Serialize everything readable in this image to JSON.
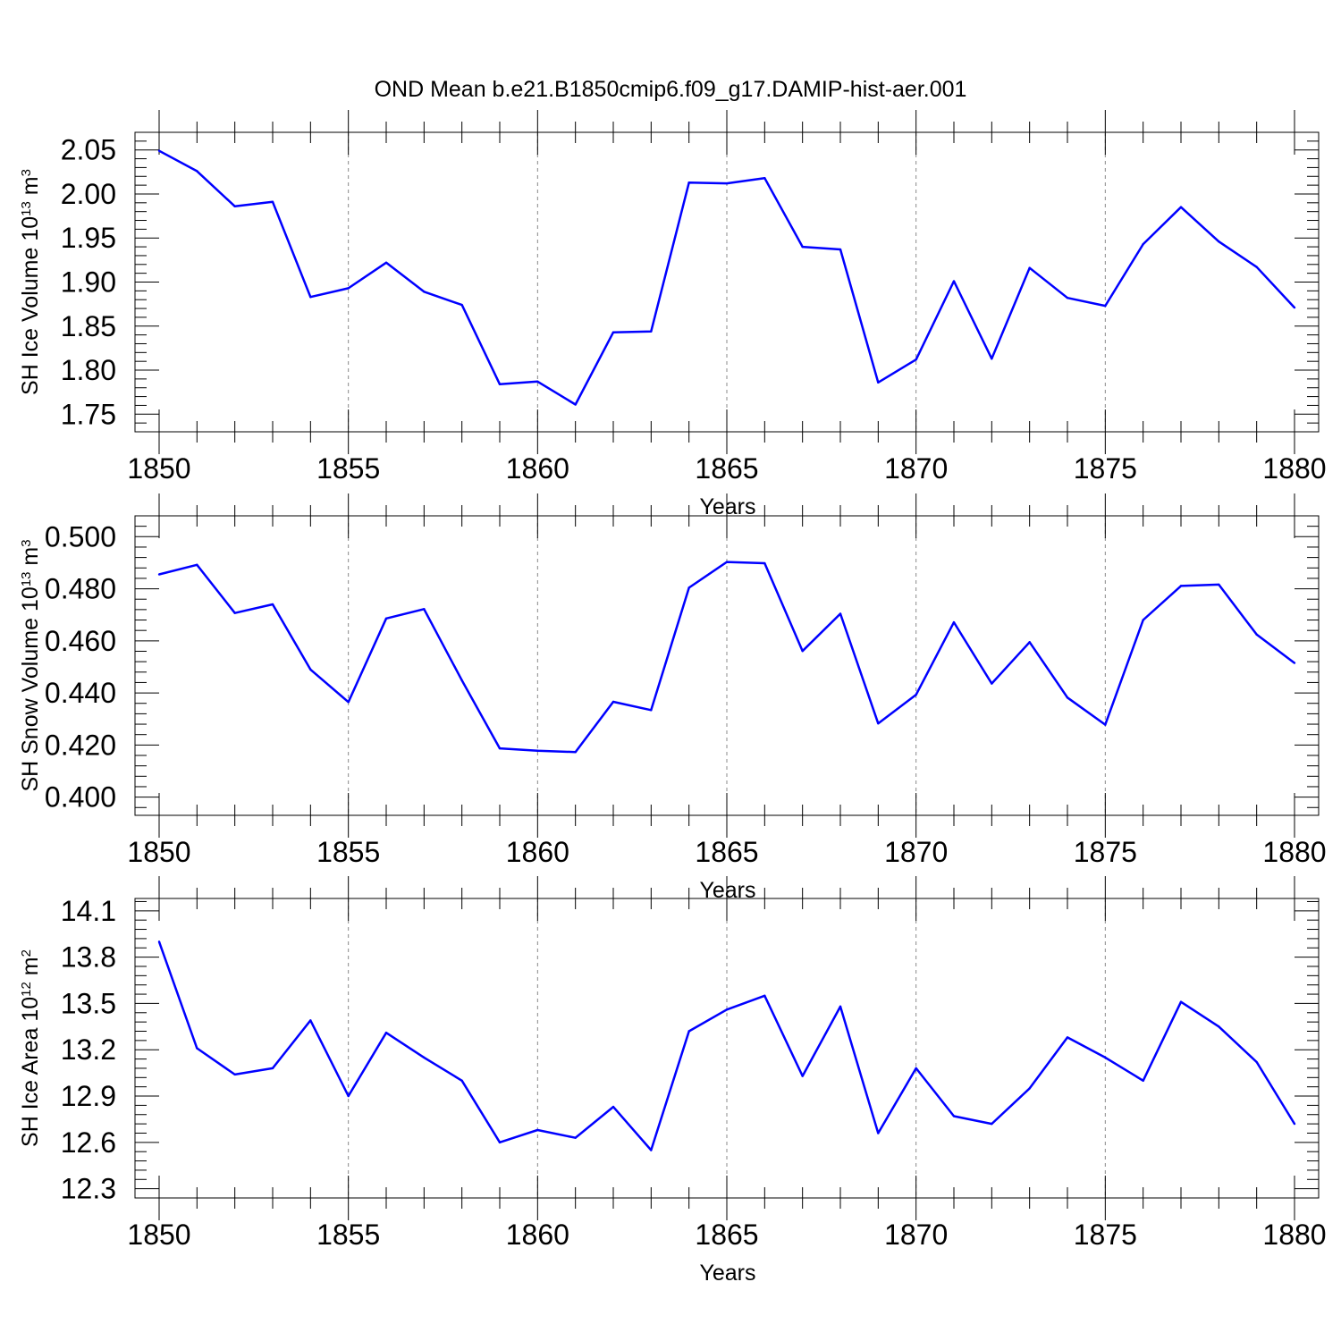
{
  "title": "OND Mean b.e21.B1850cmip6.f09_g17.DAMIP-hist-aer.001",
  "line_color": "#0000ff",
  "chart_data": [
    {
      "type": "line",
      "ylabel": {
        "base": "SH Ice Volume 10",
        "exp": "13",
        "unit": " m",
        "unit_exp": "3"
      },
      "xlabel": "Years",
      "xlim": [
        1850,
        1880
      ],
      "ylim": [
        1.73,
        2.07
      ],
      "x_ticks": [
        "1850",
        "1855",
        "1860",
        "1865",
        "1870",
        "1875",
        "1880"
      ],
      "y_ticks": [
        "2.05",
        "2.00",
        "1.95",
        "1.90",
        "1.85",
        "1.80",
        "1.75"
      ],
      "x": [
        1850,
        1851,
        1852,
        1853,
        1854,
        1855,
        1856,
        1857,
        1858,
        1859,
        1860,
        1861,
        1862,
        1863,
        1864,
        1865,
        1866,
        1867,
        1868,
        1869,
        1870,
        1871,
        1872,
        1873,
        1874,
        1875,
        1876,
        1877,
        1878,
        1879,
        1880
      ],
      "values": [
        2.049,
        2.026,
        1.986,
        1.991,
        1.883,
        1.893,
        1.922,
        1.889,
        1.874,
        1.784,
        1.787,
        1.761,
        1.843,
        1.844,
        2.013,
        2.012,
        2.018,
        1.94,
        1.937,
        1.786,
        1.812,
        1.901,
        1.813,
        1.916,
        1.882,
        1.873,
        1.943,
        1.985,
        1.946,
        1.917,
        1.871
      ]
    },
    {
      "type": "line",
      "ylabel": {
        "base": "SH Snow Volume 10",
        "exp": "13",
        "unit": " m",
        "unit_exp": "3"
      },
      "xlabel": "Years",
      "xlim": [
        1850,
        1880
      ],
      "ylim": [
        0.393,
        0.508
      ],
      "x_ticks": [
        "1850",
        "1855",
        "1860",
        "1865",
        "1870",
        "1875",
        "1880"
      ],
      "y_ticks": [
        "0.500",
        "0.480",
        "0.460",
        "0.440",
        "0.420",
        "0.400"
      ],
      "x": [
        1850,
        1851,
        1852,
        1853,
        1854,
        1855,
        1856,
        1857,
        1858,
        1859,
        1860,
        1861,
        1862,
        1863,
        1864,
        1865,
        1866,
        1867,
        1868,
        1869,
        1870,
        1871,
        1872,
        1873,
        1874,
        1875,
        1876,
        1877,
        1878,
        1879,
        1880
      ],
      "values": [
        0.4855,
        0.4892,
        0.4707,
        0.474,
        0.449,
        0.4365,
        0.4686,
        0.4722,
        0.4448,
        0.4187,
        0.4178,
        0.4173,
        0.4366,
        0.4334,
        0.4804,
        0.4903,
        0.4898,
        0.4561,
        0.4704,
        0.4283,
        0.4393,
        0.4671,
        0.4436,
        0.4595,
        0.4382,
        0.4278,
        0.468,
        0.4811,
        0.4816,
        0.4624,
        0.4515
      ]
    },
    {
      "type": "line",
      "ylabel": {
        "base": "SH Ice Area 10",
        "exp": "12",
        "unit": " m",
        "unit_exp": "2"
      },
      "xlabel": "Years",
      "xlim": [
        1850,
        1880
      ],
      "ylim": [
        12.24,
        14.18
      ],
      "x_ticks": [
        "1850",
        "1855",
        "1860",
        "1865",
        "1870",
        "1875",
        "1880"
      ],
      "y_ticks": [
        "14.1",
        "13.8",
        "13.5",
        "13.2",
        "12.9",
        "12.6",
        "12.3"
      ],
      "x": [
        1850,
        1851,
        1852,
        1853,
        1854,
        1855,
        1856,
        1857,
        1858,
        1859,
        1860,
        1861,
        1862,
        1863,
        1864,
        1865,
        1866,
        1867,
        1868,
        1869,
        1870,
        1871,
        1872,
        1873,
        1874,
        1875,
        1876,
        1877,
        1878,
        1879,
        1880
      ],
      "values": [
        13.9,
        13.21,
        13.04,
        13.08,
        13.39,
        12.9,
        13.31,
        13.15,
        13.0,
        12.6,
        12.68,
        12.63,
        12.83,
        12.55,
        13.32,
        13.46,
        13.55,
        13.03,
        13.48,
        12.66,
        13.08,
        12.77,
        12.72,
        12.95,
        13.28,
        13.15,
        13.0,
        13.51,
        13.35,
        13.12,
        12.72
      ]
    }
  ]
}
